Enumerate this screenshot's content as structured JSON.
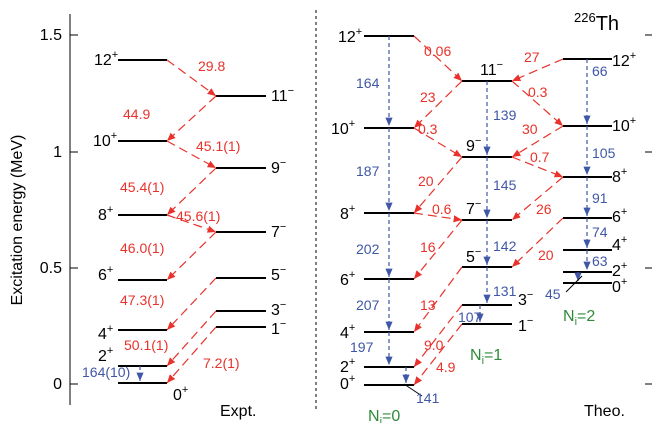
{
  "colors": {
    "level": "#000000",
    "e2_arrow": "#e8322b",
    "e1_arrow": "#3f57a6",
    "band_label": "#2e8a3a"
  },
  "axis": {
    "ylabel": "Excitation energy (MeV)",
    "ticks": [
      "0",
      "0.5",
      "1",
      "1.5"
    ]
  },
  "nucleus": {
    "mass": "226",
    "symbol": "Th"
  },
  "panels": {
    "expt_label": "Expt.",
    "theo_label": "Theo."
  },
  "bands": {
    "n0": {
      "prefix": "N",
      "sub": "i",
      "value": "=0"
    },
    "n1": {
      "prefix": "N",
      "sub": "i",
      "value": "=1"
    },
    "n2": {
      "prefix": "N",
      "sub": "i",
      "value": "=2"
    }
  },
  "expt": {
    "even_levels": [
      {
        "spin": "0",
        "parity": "+"
      },
      {
        "spin": "2",
        "parity": "+"
      },
      {
        "spin": "4",
        "parity": "+"
      },
      {
        "spin": "6",
        "parity": "+"
      },
      {
        "spin": "8",
        "parity": "+"
      },
      {
        "spin": "10",
        "parity": "+"
      },
      {
        "spin": "12",
        "parity": "+"
      }
    ],
    "odd_levels": [
      {
        "spin": "1",
        "parity": "−"
      },
      {
        "spin": "3",
        "parity": "−"
      },
      {
        "spin": "5",
        "parity": "−"
      },
      {
        "spin": "7",
        "parity": "−"
      },
      {
        "spin": "9",
        "parity": "−"
      },
      {
        "spin": "11",
        "parity": "−"
      }
    ],
    "e1_labels": [
      "29.8",
      "44.9",
      "45.1(1)",
      "45.4(1)",
      "45.6(1)",
      "46.0(1)",
      "47.3(1)",
      "50.1(1)",
      "7.2(1)"
    ],
    "e2_label": "164(10)"
  },
  "theo": {
    "n0_levels": [
      {
        "spin": "0",
        "parity": "+"
      },
      {
        "spin": "2",
        "parity": "+"
      },
      {
        "spin": "4",
        "parity": "+"
      },
      {
        "spin": "6",
        "parity": "+"
      },
      {
        "spin": "8",
        "parity": "+"
      },
      {
        "spin": "10",
        "parity": "+"
      },
      {
        "spin": "12",
        "parity": "+"
      }
    ],
    "n1_levels": [
      {
        "spin": "1",
        "parity": "−"
      },
      {
        "spin": "3",
        "parity": "−"
      },
      {
        "spin": "5",
        "parity": "−"
      },
      {
        "spin": "7",
        "parity": "−"
      },
      {
        "spin": "9",
        "parity": "−"
      },
      {
        "spin": "11",
        "parity": "−"
      }
    ],
    "n2_levels": [
      {
        "spin": "0",
        "parity": "+"
      },
      {
        "spin": "2",
        "parity": "+"
      },
      {
        "spin": "4",
        "parity": "+"
      },
      {
        "spin": "6",
        "parity": "+"
      },
      {
        "spin": "8",
        "parity": "+"
      },
      {
        "spin": "10",
        "parity": "+"
      },
      {
        "spin": "12",
        "parity": "+"
      }
    ],
    "red_labels": [
      "0.06",
      "27",
      "23",
      "0.3",
      "0.3",
      "30",
      "20",
      "0.7",
      "0.6",
      "26",
      "16",
      "20",
      "13",
      "9.0",
      "4.9"
    ],
    "blue_labels": [
      "164",
      "66",
      "139",
      "187",
      "105",
      "145",
      "91",
      "202",
      "74",
      "142",
      "63",
      "207",
      "131",
      "45",
      "107",
      "197",
      "141"
    ]
  }
}
